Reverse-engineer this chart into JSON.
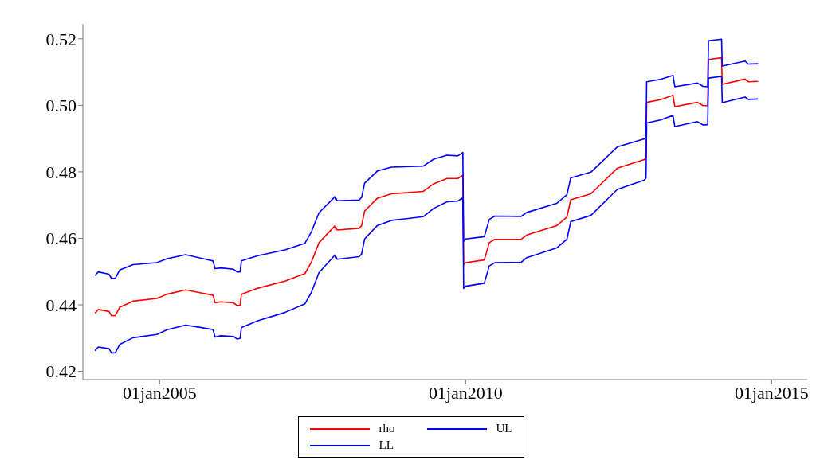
{
  "chart_data": {
    "type": "line",
    "x": [
      "2003-12-12",
      "2004-01-01",
      "2004-03-05",
      "2004-03-20",
      "2004-04-12",
      "2004-05-08",
      "2004-07-26",
      "2004-12-15",
      "2005-02-15",
      "2005-06-05",
      "2005-11-15",
      "2005-11-28",
      "2006-01-01",
      "2006-03-18",
      "2006-04-08",
      "2006-04-26",
      "2006-05-04",
      "2006-08-10",
      "2007-01-18",
      "2007-05-18",
      "2007-06-24",
      "2007-08-10",
      "2007-10-30",
      "2007-11-14",
      "2007-11-26",
      "2008-04-05",
      "2008-04-20",
      "2008-05-08",
      "2008-07-24",
      "2008-10-15",
      "2009-04-22",
      "2009-06-24",
      "2009-09-12",
      "2009-11-15",
      "2009-12-15",
      "2009-12-20",
      "2010-01-01",
      "2010-04-22",
      "2010-05-22",
      "2010-06-24",
      "2010-11-28",
      "2011-01-01",
      "2011-06-28",
      "2011-08-28",
      "2011-09-20",
      "2012-01-18",
      "2012-06-24",
      "2012-12-02",
      "2012-12-12",
      "2012-12-16",
      "2013-03-08",
      "2013-05-22",
      "2013-06-02",
      "2013-10-15",
      "2013-11-18",
      "2013-12-15",
      "2013-12-20",
      "2014-03-08",
      "2014-03-12",
      "2014-07-26",
      "2014-08-14",
      "2014-10-12"
    ],
    "series": [
      {
        "name": "rho",
        "color": "#ff0000",
        "values": [
          0.4375,
          0.4386,
          0.438,
          0.4367,
          0.4368,
          0.4393,
          0.4411,
          0.4419,
          0.4432,
          0.4445,
          0.4429,
          0.4406,
          0.4409,
          0.4406,
          0.4398,
          0.4399,
          0.4432,
          0.445,
          0.4471,
          0.4494,
          0.4527,
          0.4587,
          0.463,
          0.4638,
          0.4625,
          0.463,
          0.4638,
          0.4682,
          0.4721,
          0.4734,
          0.4741,
          0.4764,
          0.478,
          0.478,
          0.479,
          0.452,
          0.4527,
          0.4535,
          0.4587,
          0.4597,
          0.4597,
          0.461,
          0.4638,
          0.4664,
          0.4716,
          0.4734,
          0.4811,
          0.4837,
          0.4844,
          0.5009,
          0.5017,
          0.503,
          0.4996,
          0.5009,
          0.4999,
          0.4999,
          0.5138,
          0.5143,
          0.5063,
          0.5079,
          0.5071,
          0.5072
        ]
      },
      {
        "name": "UL",
        "color": "#0000ff",
        "values": [
          0.4488,
          0.4499,
          0.4492,
          0.4479,
          0.448,
          0.4505,
          0.4521,
          0.4527,
          0.4539,
          0.4551,
          0.4532,
          0.4509,
          0.4511,
          0.4507,
          0.4499,
          0.4499,
          0.4532,
          0.4548,
          0.4565,
          0.4585,
          0.4618,
          0.4677,
          0.4718,
          0.4726,
          0.4713,
          0.4715,
          0.4723,
          0.4766,
          0.4803,
          0.4814,
          0.4817,
          0.4838,
          0.485,
          0.4848,
          0.4858,
          0.4591,
          0.4598,
          0.4605,
          0.4657,
          0.4667,
          0.4666,
          0.4678,
          0.4705,
          0.4731,
          0.4782,
          0.4799,
          0.4875,
          0.4899,
          0.4906,
          0.5071,
          0.5078,
          0.509,
          0.5056,
          0.5067,
          0.5057,
          0.5056,
          0.5194,
          0.5199,
          0.5118,
          0.5133,
          0.5124,
          0.5125
        ]
      },
      {
        "name": "LL",
        "color": "#0000ff",
        "values": [
          0.4262,
          0.4273,
          0.4268,
          0.4255,
          0.4256,
          0.4281,
          0.4301,
          0.4311,
          0.4325,
          0.4339,
          0.4326,
          0.4303,
          0.4307,
          0.4305,
          0.4297,
          0.4299,
          0.4332,
          0.4352,
          0.4377,
          0.4403,
          0.4436,
          0.4497,
          0.4542,
          0.455,
          0.4537,
          0.4545,
          0.4553,
          0.4598,
          0.4639,
          0.4654,
          0.4665,
          0.469,
          0.471,
          0.4712,
          0.4722,
          0.4449,
          0.4456,
          0.4465,
          0.4517,
          0.4527,
          0.4528,
          0.4542,
          0.4571,
          0.4597,
          0.465,
          0.4669,
          0.4747,
          0.4775,
          0.4782,
          0.4947,
          0.4956,
          0.497,
          0.4936,
          0.4951,
          0.4941,
          0.4942,
          0.5082,
          0.5087,
          0.5008,
          0.5025,
          0.5018,
          0.5019
        ]
      }
    ],
    "xlim": [
      "2003-10-01",
      "2015-08-01"
    ],
    "xticks": [
      {
        "value": "2005-01-01",
        "label": "01jan2005"
      },
      {
        "value": "2010-01-01",
        "label": "01jan2010"
      },
      {
        "value": "2015-01-01",
        "label": "01jan2015"
      }
    ],
    "ylim": [
      0.4175,
      0.5245
    ],
    "yticks": [
      0.42,
      0.44,
      0.46,
      0.48,
      {
        "value": 0.5,
        "label": "0.50"
      },
      0.52
    ],
    "grid": false,
    "legend": "bottom",
    "marker": "none",
    "line_style": "solid"
  }
}
